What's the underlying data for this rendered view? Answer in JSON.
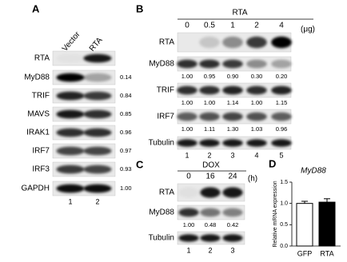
{
  "panel_a": {
    "label": "A",
    "columns": [
      "Vector",
      "RTA"
    ],
    "rows": [
      {
        "name": "RTA"
      },
      {
        "name": "MyD88",
        "ratio": "0.14"
      },
      {
        "name": "TRIF",
        "ratio": "0.84"
      },
      {
        "name": "MAVS",
        "ratio": "0.85"
      },
      {
        "name": "IRAK1",
        "ratio": "0.96"
      },
      {
        "name": "IRF7",
        "ratio": "0.97"
      },
      {
        "name": "IRF3",
        "ratio": "0.93"
      },
      {
        "name": "GAPDH",
        "ratio": "1.00"
      }
    ],
    "lanes": [
      "1",
      "2"
    ]
  },
  "panel_b": {
    "label": "B",
    "treatment": "RTA",
    "doses": [
      "0",
      "0.5",
      "1",
      "2",
      "4"
    ],
    "unit": "(μg)",
    "rows": [
      {
        "name": "RTA"
      },
      {
        "name": "MyD88",
        "ratios": [
          "1.00",
          "0.95",
          "0.90",
          "0.30",
          "0.20"
        ]
      },
      {
        "name": "TRIF",
        "ratios": [
          "1.00",
          "1.00",
          "1.14",
          "1.00",
          "1.15"
        ]
      },
      {
        "name": "IRF7",
        "ratios": [
          "1.00",
          "1.11",
          "1.30",
          "1.03",
          "0.96"
        ]
      },
      {
        "name": "Tubulin"
      }
    ],
    "lanes": [
      "1",
      "2",
      "3",
      "4",
      "5"
    ]
  },
  "panel_c": {
    "label": "C",
    "treatment": "DOX",
    "times": [
      "0",
      "16",
      "24"
    ],
    "unit": "(h)",
    "rows": [
      {
        "name": "RTA"
      },
      {
        "name": "MyD88",
        "ratios": [
          "1.00",
          "0.48",
          "0.42"
        ]
      },
      {
        "name": "Tubulin"
      }
    ],
    "lanes": [
      "1",
      "2",
      "3"
    ]
  },
  "chart_data": {
    "type": "bar",
    "panel_label": "D",
    "title": "MyD88",
    "y_label": "Relative mRNA expression",
    "categories": [
      "GFP",
      "RTA"
    ],
    "values": [
      1.0,
      1.03
    ],
    "errors": [
      0.05,
      0.08
    ],
    "colors": [
      "#ffffff",
      "#000000"
    ],
    "ylim": [
      0,
      1.5
    ],
    "yticks": [
      {
        "value": 0,
        "label": "0.0"
      },
      0.5,
      {
        "value": 1,
        "label": "1.0"
      },
      1.5
    ]
  }
}
